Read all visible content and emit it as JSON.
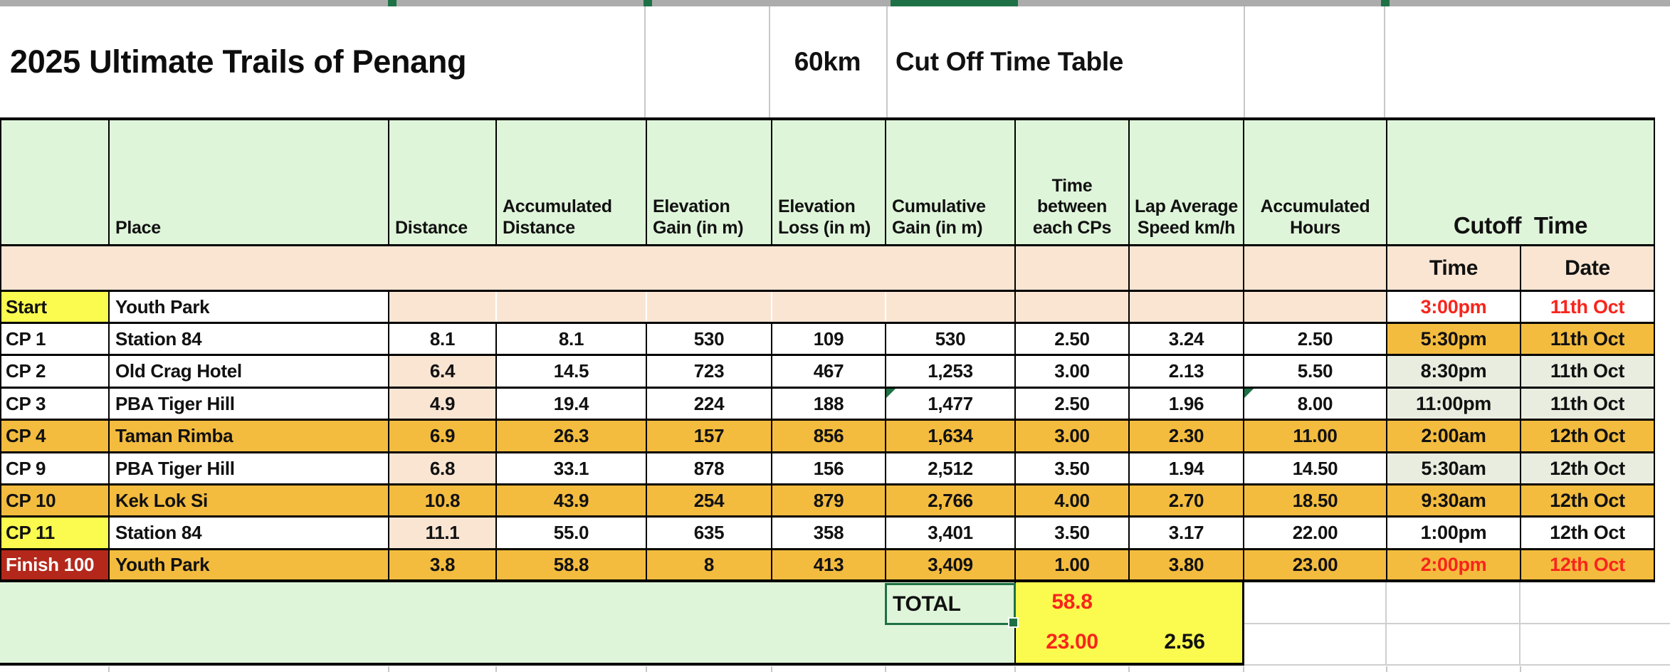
{
  "title": {
    "main": "2025 Ultimate Trails of Penang",
    "race": "60km",
    "subtitle": "Cut Off Time Table"
  },
  "columns": [
    "",
    "Place",
    "Distance",
    "Accumulated Distance",
    "Elevation Gain (in m)",
    "Elevation Loss (in m)",
    "Cumulative Gain (in m)",
    "Time between each CPs",
    "Lap Average Speed km/h",
    "Accumulated Hours"
  ],
  "cutoff_header": "Cutoff  Time",
  "subheaders": {
    "time": "Time",
    "date": "Date"
  },
  "rows": [
    {
      "label": "Start",
      "place": "Youth Park",
      "values": [
        "",
        "",
        "",
        "",
        "",
        "",
        "",
        ""
      ],
      "time": "3:00pm",
      "date": "11th Oct",
      "style": "start",
      "label_bg": "yellow",
      "cutoff": "white",
      "cutoff_red": true
    },
    {
      "label": "CP 1",
      "place": "Station 84",
      "values": [
        "8.1",
        "8.1",
        "530",
        "109",
        "530",
        "2.50",
        "3.24",
        "2.50"
      ],
      "time": "5:30pm",
      "date": "11th Oct",
      "style": "white",
      "cutoff": "gold"
    },
    {
      "label": "CP 2",
      "place": "Old Crag Hotel",
      "values": [
        "6.4",
        "14.5",
        "723",
        "467",
        "1,253",
        "3.00",
        "2.13",
        "5.50"
      ],
      "time": "8:30pm",
      "date": "11th Oct",
      "style": "white",
      "cutoff": "olive",
      "distance_peach": true
    },
    {
      "label": "CP 3",
      "place": "PBA Tiger Hill",
      "values": [
        "4.9",
        "19.4",
        "224",
        "188",
        "1,477",
        "2.50",
        "1.96",
        "8.00"
      ],
      "time": "11:00pm",
      "date": "11th Oct",
      "style": "white",
      "cutoff": "olive",
      "distance_peach": true,
      "triangles": [
        4,
        7
      ]
    },
    {
      "label": "CP 4",
      "place": "Taman Rimba",
      "values": [
        "6.9",
        "26.3",
        "157",
        "856",
        "1,634",
        "3.00",
        "2.30",
        "11.00"
      ],
      "time": "2:00am",
      "date": "12th Oct",
      "style": "gold",
      "cutoff": "gold"
    },
    {
      "label": "CP 9",
      "place": "PBA Tiger Hill",
      "values": [
        "6.8",
        "33.1",
        "878",
        "156",
        "2,512",
        "3.50",
        "1.94",
        "14.50"
      ],
      "time": "5:30am",
      "date": "12th Oct",
      "style": "white",
      "cutoff": "olive",
      "distance_peach": true
    },
    {
      "label": "CP 10",
      "place": "Kek Lok Si",
      "values": [
        "10.8",
        "43.9",
        "254",
        "879",
        "2,766",
        "4.00",
        "2.70",
        "18.50"
      ],
      "time": "9:30am",
      "date": "12th Oct",
      "style": "gold",
      "cutoff": "gold"
    },
    {
      "label": "CP 11",
      "place": "Station 84",
      "values": [
        "11.1",
        "55.0",
        "635",
        "358",
        "3,401",
        "3.50",
        "3.17",
        "22.00"
      ],
      "time": "1:00pm",
      "date": "12th Oct",
      "style": "white",
      "cutoff": "white",
      "label_bg": "yellow",
      "distance_peach": true
    },
    {
      "label": "Finish 100",
      "place": "Youth Park",
      "values": [
        "3.8",
        "58.8",
        "8",
        "413",
        "3,409",
        "1.00",
        "3.80",
        "23.00"
      ],
      "time": "2:00pm",
      "date": "12th Oct",
      "style": "gold",
      "cutoff": "gold",
      "label_bg": "darkred",
      "cutoff_red": true
    }
  ],
  "totals": {
    "label": "TOTAL",
    "distance": "58.8",
    "hours": "23.00",
    "speed": "2.56"
  },
  "colors": {
    "gold": "#F3BC3F",
    "peach": "#FAE5D3",
    "light_green": "#DFF5DA",
    "olive": "#E9EDE0",
    "yellow": "#FBFB4F",
    "dark_red": "#B4281B",
    "red_text": "#F8251C",
    "excel_green": "#1E7145",
    "strip_grey": "#ACACAC"
  }
}
